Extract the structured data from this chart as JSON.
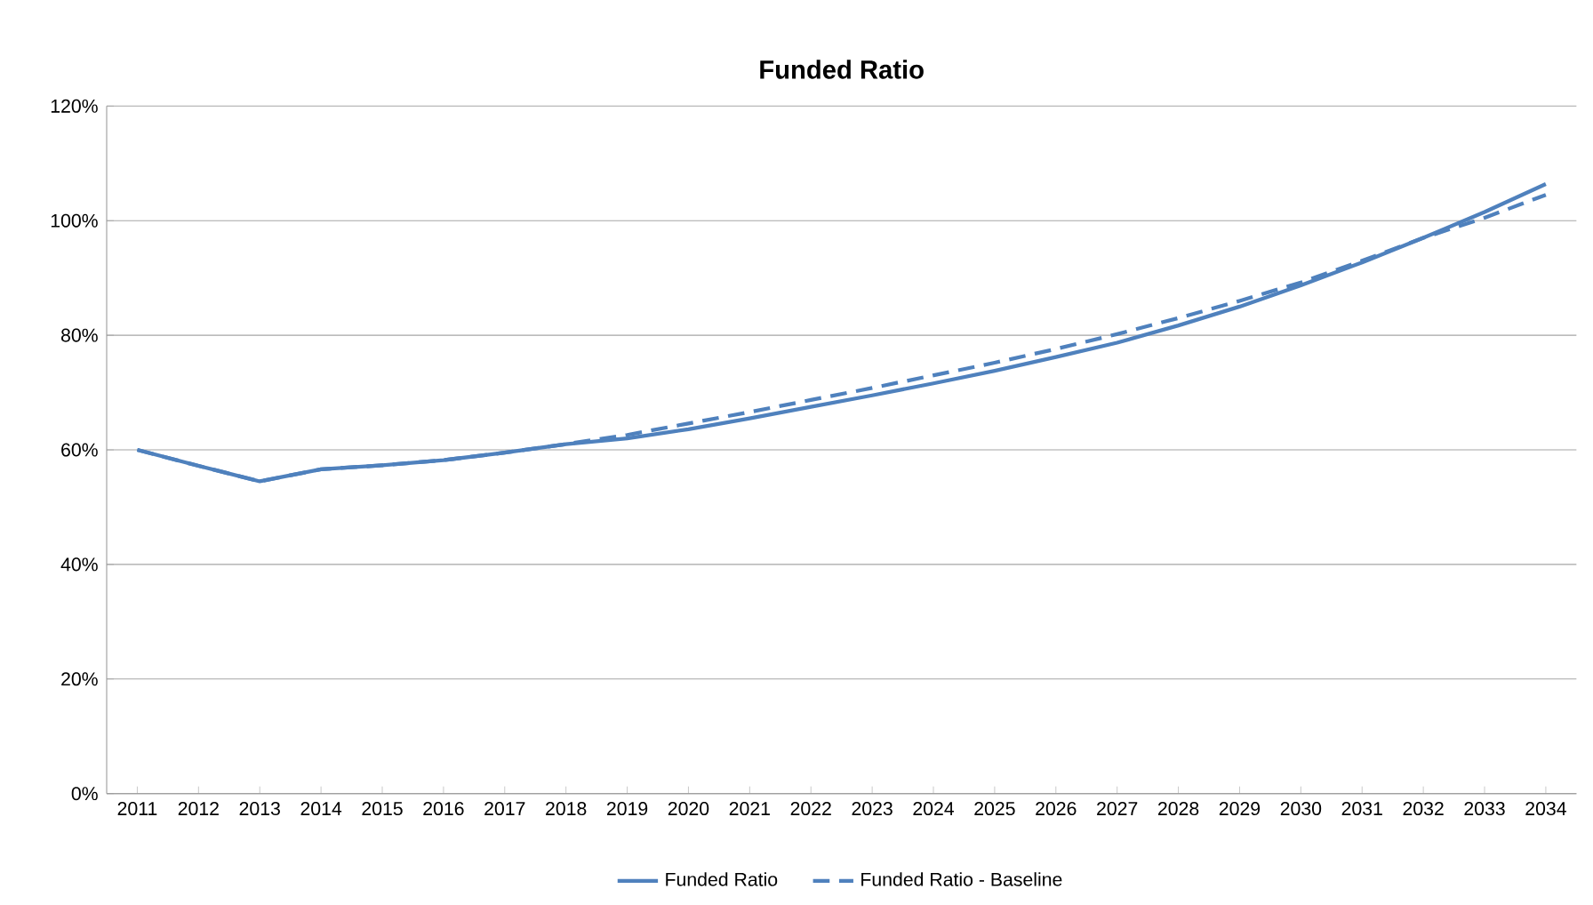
{
  "chart_data": {
    "type": "line",
    "title": "Funded Ratio",
    "categories": [
      "2011",
      "2012",
      "2013",
      "2014",
      "2015",
      "2016",
      "2017",
      "2018",
      "2019",
      "2020",
      "2021",
      "2022",
      "2023",
      "2024",
      "2025",
      "2026",
      "2027",
      "2028",
      "2029",
      "2030",
      "2031",
      "2032",
      "2033",
      "2034"
    ],
    "series": [
      {
        "name": "Funded Ratio",
        "color": "#4f81bd",
        "line_style": "solid",
        "values": [
          60,
          57.2,
          54.5,
          56.6,
          57.3,
          58.2,
          59.5,
          61,
          62,
          63.6,
          65.5,
          67.5,
          69.5,
          71.6,
          73.8,
          76.2,
          78.7,
          81.7,
          85,
          88.7,
          92.7,
          97,
          101.5,
          106.4
        ]
      },
      {
        "name": "Funded Ratio - Baseline",
        "color": "#4f81bd",
        "line_style": "dashed",
        "values": [
          60,
          57.2,
          54.5,
          56.6,
          57.3,
          58.2,
          59.5,
          61,
          62.6,
          64.6,
          66.6,
          68.7,
          70.8,
          73,
          75.2,
          77.6,
          80.2,
          83,
          86,
          89.2,
          93,
          97,
          100.5,
          104.5
        ]
      }
    ],
    "ylim": [
      0,
      120
    ],
    "yticks": [
      {
        "value": 0,
        "label": "0%"
      },
      {
        "value": 20,
        "label": "20%"
      },
      {
        "value": 40,
        "label": "40%"
      },
      {
        "value": 60,
        "label": "60%"
      },
      {
        "value": 80,
        "label": "80%"
      },
      {
        "value": 100,
        "label": "100%"
      },
      {
        "value": 120,
        "label": "120%"
      }
    ],
    "grid": "y",
    "legend": "bottom",
    "marker": "none"
  }
}
